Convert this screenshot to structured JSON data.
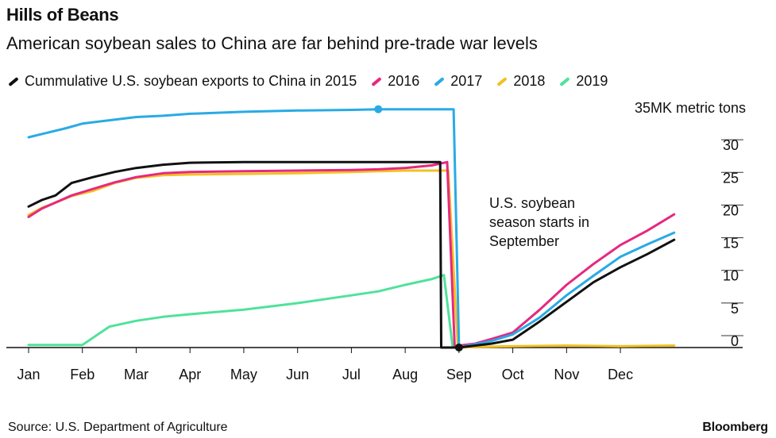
{
  "header": {
    "title": "Hills of Beans",
    "subtitle": "American soybean sales to China are far behind pre-trade war levels"
  },
  "footer": {
    "source": "Source: U.S. Department of Agriculture",
    "logo": "Bloomberg"
  },
  "chart_data": {
    "type": "line",
    "unit_label": "35MK metric tons",
    "annotation": [
      "U.S. soybean",
      "season starts in",
      "September"
    ],
    "y_ticks": [
      0,
      5,
      10,
      15,
      20,
      25,
      30
    ],
    "ylim": [
      0,
      35
    ],
    "x_months": [
      "Jan",
      "Feb",
      "Mar",
      "Apr",
      "May",
      "Jun",
      "Jul",
      "Aug",
      "Sep",
      "Oct",
      "Nov",
      "Dec"
    ],
    "x_range": [
      1,
      13.2
    ],
    "grid": false,
    "legend_position": "top",
    "series": [
      {
        "name": "Cummulative U.S. soybean exports to China in 2015",
        "color": "#111111",
        "stroke": 3,
        "x": [
          1,
          1.25,
          1.5,
          1.8,
          2.2,
          2.6,
          3.0,
          3.5,
          4.0,
          5.0,
          6.0,
          7.0,
          7.5,
          8.0,
          8.5,
          8.65,
          8.67,
          9.0,
          9.3,
          9.6,
          10.0,
          10.5,
          11.0,
          11.5,
          12.0,
          12.5,
          13.0
        ],
        "y": [
          21.6,
          22.6,
          23.3,
          25.2,
          26.1,
          26.9,
          27.5,
          28.0,
          28.3,
          28.4,
          28.4,
          28.4,
          28.4,
          28.4,
          28.4,
          28.4,
          0,
          0,
          0.3,
          0.6,
          1.2,
          4.0,
          7.0,
          10.0,
          12.3,
          14.3,
          16.5
        ]
      },
      {
        "name": "2016",
        "color": "#e6287f",
        "stroke": 3,
        "x": [
          1,
          1.25,
          1.5,
          1.8,
          2.2,
          2.6,
          3.0,
          3.5,
          4.0,
          5.0,
          6.0,
          7.0,
          7.5,
          8.0,
          8.5,
          8.78,
          8.92,
          9.0,
          9.3,
          9.6,
          10.0,
          10.5,
          11.0,
          11.5,
          12.0,
          12.5,
          13.0
        ],
        "y": [
          20.0,
          21.3,
          22.2,
          23.3,
          24.3,
          25.3,
          26.1,
          26.7,
          26.9,
          27.0,
          27.1,
          27.2,
          27.3,
          27.5,
          27.9,
          28.4,
          0,
          0.3,
          0.6,
          1.3,
          2.3,
          5.8,
          9.6,
          12.8,
          15.7,
          17.9,
          20.4
        ]
      },
      {
        "name": "2017",
        "color": "#2aaae5",
        "stroke": 3,
        "x": [
          1,
          1.3,
          1.7,
          2.0,
          2.5,
          3.0,
          3.5,
          4.0,
          5.0,
          6.0,
          7.0,
          7.5,
          8.0,
          8.5,
          8.9,
          9.0,
          9.3,
          9.6,
          10.0,
          10.5,
          11.0,
          11.5,
          12.0,
          12.5,
          13.0
        ],
        "y": [
          32.2,
          32.8,
          33.6,
          34.3,
          34.8,
          35.3,
          35.5,
          35.8,
          36.1,
          36.3,
          36.4,
          36.5,
          36.5,
          36.5,
          36.5,
          0,
          0.5,
          1.0,
          2.0,
          4.6,
          8.0,
          11.0,
          13.9,
          15.8,
          17.6
        ]
      },
      {
        "name": "2018",
        "color": "#f3c022",
        "stroke": 3,
        "x": [
          1,
          1.25,
          1.5,
          1.8,
          2.2,
          2.6,
          3.0,
          3.5,
          4.0,
          5.0,
          6.0,
          7.0,
          7.5,
          8.0,
          8.5,
          8.8,
          8.98,
          9.3,
          10.0,
          11.0,
          12.0,
          13.0
        ],
        "y": [
          20.3,
          21.4,
          22.2,
          23.2,
          24.0,
          25.2,
          26.0,
          26.4,
          26.5,
          26.6,
          26.7,
          26.9,
          27.0,
          27.1,
          27.1,
          27.1,
          0,
          0.1,
          0.2,
          0.3,
          0.2,
          0.3
        ]
      },
      {
        "name": "2019",
        "color": "#4fe29b",
        "stroke": 3,
        "x": [
          1,
          1.5,
          2.0,
          2.5,
          3.0,
          3.5,
          4.0,
          5.0,
          6.0,
          7.0,
          7.5,
          8.0,
          8.5,
          8.72,
          8.88,
          9.0
        ],
        "y": [
          0.4,
          0.4,
          0.4,
          3.2,
          4.1,
          4.7,
          5.1,
          5.8,
          6.8,
          8.0,
          8.6,
          9.6,
          10.5,
          11.1,
          0.3,
          0.3
        ]
      }
    ]
  }
}
